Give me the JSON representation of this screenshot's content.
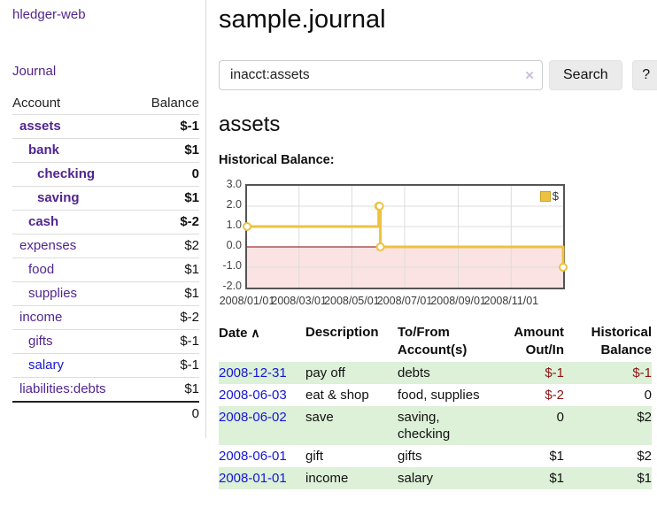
{
  "colors": {
    "link_purple": "#51258f",
    "link_blue": "#1515d6",
    "negative_strong": "#8b1414",
    "negative_muted": "#b97979",
    "row_highlight_green": "#ddf0d8",
    "chart_line": "#edc240",
    "chart_negative_fill": "#fbe3e3",
    "chart_zero_line": "#8b0000",
    "chart_grid": "#dcdcdc",
    "chart_border": "#545454"
  },
  "sidebar": {
    "brand": "hledger-web",
    "nav": [
      {
        "label": "Journal"
      }
    ],
    "accounts_table": {
      "header": {
        "account": "Account",
        "balance": "Balance"
      },
      "rows": [
        {
          "account": "assets",
          "depth": 1,
          "bold": true,
          "balance": "$-1",
          "neg": "strong",
          "link": "purple"
        },
        {
          "account": "bank",
          "depth": 2,
          "bold": true,
          "balance": "$1",
          "neg": "none",
          "link": "purple"
        },
        {
          "account": "checking",
          "depth": 3,
          "bold": true,
          "balance": "0",
          "neg": "none",
          "link": "purple"
        },
        {
          "account": "saving",
          "depth": 3,
          "bold": true,
          "balance": "$1",
          "neg": "none",
          "link": "purple"
        },
        {
          "account": "cash",
          "depth": 2,
          "bold": true,
          "balance": "$-2",
          "neg": "strong",
          "link": "purple"
        },
        {
          "account": "expenses",
          "depth": 1,
          "bold": false,
          "balance": "$2",
          "neg": "none",
          "link": "purple"
        },
        {
          "account": "food",
          "depth": 2,
          "bold": false,
          "balance": "$1",
          "neg": "none",
          "link": "purple"
        },
        {
          "account": "supplies",
          "depth": 2,
          "bold": false,
          "balance": "$1",
          "neg": "none",
          "link": "purple"
        },
        {
          "account": "income",
          "depth": 1,
          "bold": false,
          "balance": "$-2",
          "neg": "muted",
          "link": "purple"
        },
        {
          "account": "gifts",
          "depth": 2,
          "bold": false,
          "balance": "$-1",
          "neg": "muted",
          "link": "purple"
        },
        {
          "account": "salary",
          "depth": 2,
          "bold": false,
          "balance": "$-1",
          "neg": "muted",
          "link": "blue"
        },
        {
          "account": "liabilities:debts",
          "depth": 1,
          "bold": false,
          "balance": "$1",
          "neg": "none",
          "link": "purple"
        }
      ],
      "total": "0"
    }
  },
  "main": {
    "title": "sample.journal",
    "search": {
      "value": "inacct:assets",
      "clear_icon": "×",
      "search_button": "Search",
      "help_button": "?"
    },
    "account_heading": "assets",
    "section_label": "Historical Balance:"
  },
  "chart_data": {
    "type": "line",
    "step": true,
    "title": "Historical Balance",
    "series": [
      {
        "name": "$",
        "color": "#edc240",
        "points": [
          {
            "date": "2008-01-01",
            "value": 1
          },
          {
            "date": "2008-06-01",
            "value": 2
          },
          {
            "date": "2008-06-02",
            "value": 2
          },
          {
            "date": "2008-06-03",
            "value": 0
          },
          {
            "date": "2008-12-31",
            "value": -1
          }
        ]
      }
    ],
    "x_range": [
      "2008-01-01",
      "2008-12-31"
    ],
    "ylim": [
      -2,
      3
    ],
    "x_tick_labels": [
      "2008/01/01",
      "2008/03/01",
      "2008/05/01",
      "2008/07/01",
      "2008/09/01",
      "2008/11/01"
    ],
    "y_tick_labels": [
      "3.0",
      "2.0",
      "1.0",
      "0.0",
      "-1.0",
      "-2.0"
    ],
    "y_tick_values": [
      3,
      2,
      1,
      0,
      -1,
      -2
    ],
    "grid": true,
    "legend_position": "top-right",
    "negative_region_shaded": true
  },
  "register": {
    "sort_icon": "∧",
    "columns": [
      {
        "line1": "Date",
        "line2": "",
        "align": "left",
        "sorted": "asc"
      },
      {
        "line1": "Description",
        "line2": "",
        "align": "left"
      },
      {
        "line1": "To/From",
        "line2": "Account(s)",
        "align": "left"
      },
      {
        "line1": "Amount",
        "line2": "Out/In",
        "align": "right"
      },
      {
        "line1": "Historical",
        "line2": "Balance",
        "align": "right"
      }
    ],
    "rows": [
      {
        "date": "2008-12-31",
        "description": "pay off",
        "accounts": "debts",
        "amount": "$-1",
        "amount_negative": true,
        "balance": "$-1",
        "balance_negative": true,
        "highlighted": true
      },
      {
        "date": "2008-06-03",
        "description": "eat & shop",
        "accounts": "food, supplies",
        "amount": "$-2",
        "amount_negative": true,
        "balance": "0",
        "balance_negative": false,
        "highlighted": false
      },
      {
        "date": "2008-06-02",
        "description": "save",
        "accounts": "saving, checking",
        "amount": "0",
        "amount_negative": false,
        "balance": "$2",
        "balance_negative": false,
        "highlighted": true
      },
      {
        "date": "2008-06-01",
        "description": "gift",
        "accounts": "gifts",
        "amount": "$1",
        "amount_negative": false,
        "balance": "$2",
        "balance_negative": false,
        "highlighted": false
      },
      {
        "date": "2008-01-01",
        "description": "income",
        "accounts": "salary",
        "amount": "$1",
        "amount_negative": false,
        "balance": "$1",
        "balance_negative": false,
        "highlighted": true
      }
    ]
  }
}
